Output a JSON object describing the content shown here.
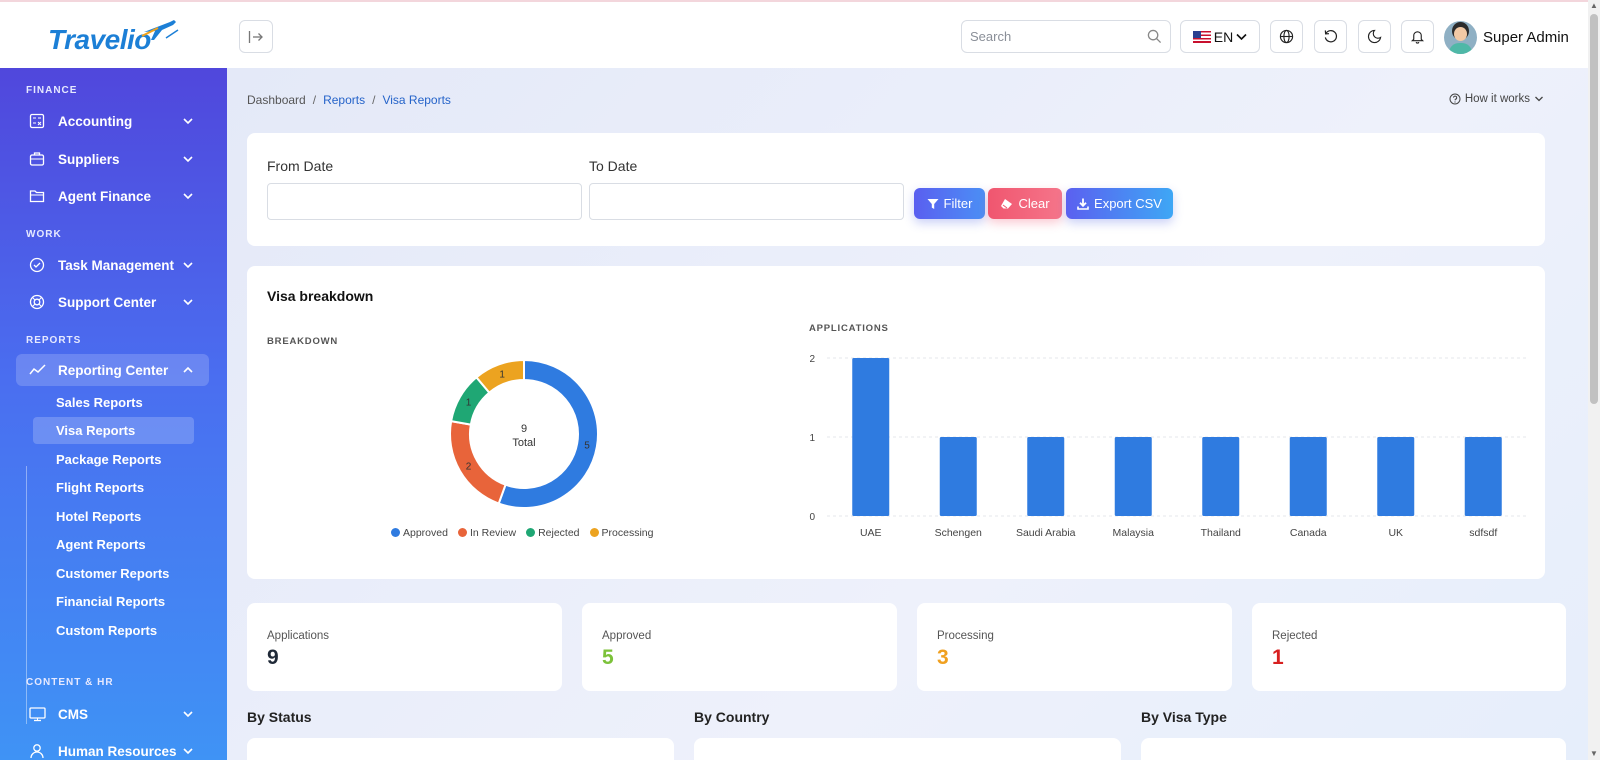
{
  "brand": {
    "name": "Travelio"
  },
  "header": {
    "search_placeholder": "Search",
    "language": "EN",
    "user_name": "Super Admin"
  },
  "sidebar": {
    "sections": [
      {
        "title": "FINANCE",
        "items": [
          "Accounting",
          "Suppliers",
          "Agent Finance"
        ]
      },
      {
        "title": "WORK",
        "items": [
          "Task Management",
          "Support Center"
        ]
      },
      {
        "title": "REPORTS",
        "items": [
          "Reporting Center"
        ]
      },
      {
        "title": "CONTENT & HR",
        "items": [
          "CMS",
          "Human Resources"
        ]
      }
    ],
    "reporting_submenu": [
      "Sales Reports",
      "Visa Reports",
      "Package Reports",
      "Flight Reports",
      "Hotel Reports",
      "Agent Reports",
      "Customer Reports",
      "Financial Reports",
      "Custom Reports"
    ],
    "active_item": "Visa Reports"
  },
  "breadcrumb": [
    "Dashboard",
    "Reports",
    "Visa Reports"
  ],
  "how_it_works": "How it works",
  "filters": {
    "from_label": "From Date",
    "to_label": "To Date",
    "from_value": "",
    "to_value": "",
    "filter_label": "Filter",
    "clear_label": "Clear",
    "export_label": "Export CSV"
  },
  "chart_section": {
    "title": "Visa breakdown",
    "breakdown_label": "BREAKDOWN",
    "applications_label": "APPLICATIONS"
  },
  "chart_data": [
    {
      "type": "pie",
      "style": "donut",
      "center_value": "9",
      "center_label": "Total",
      "slices": [
        {
          "name": "Approved",
          "value": 5,
          "color": "#2f7be0"
        },
        {
          "name": "In Review",
          "value": 2,
          "color": "#e8643a"
        },
        {
          "name": "Rejected",
          "value": 1,
          "color": "#1fa774"
        },
        {
          "name": "Processing",
          "value": 1,
          "color": "#eca320"
        }
      ],
      "legend_placement": "bottom"
    },
    {
      "type": "bar",
      "categories": [
        "UAE",
        "Schengen",
        "Saudi Arabia",
        "Malaysia",
        "Thailand",
        "Canada",
        "UK",
        "sdfsdf"
      ],
      "values": [
        2,
        1,
        1,
        1,
        1,
        1,
        1,
        1
      ],
      "yticks": [
        "0",
        "1",
        "2"
      ],
      "ylim": [
        0,
        2
      ],
      "color": "#2f7be0",
      "grid": true
    }
  ],
  "stats": [
    {
      "label": "Applications",
      "value": "9",
      "color": "#1f2937"
    },
    {
      "label": "Approved",
      "value": "5",
      "color": "#7cc23a"
    },
    {
      "label": "Processing",
      "value": "3",
      "color": "#f0a020"
    },
    {
      "label": "Rejected",
      "value": "1",
      "color": "#d72020"
    }
  ],
  "groups": [
    "By Status",
    "By Country",
    "By Visa Type"
  ]
}
